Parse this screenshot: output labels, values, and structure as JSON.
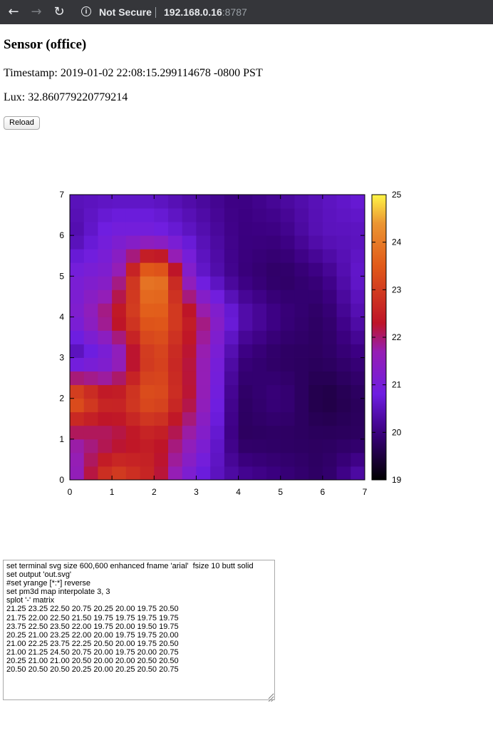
{
  "browser": {
    "security_label": "Not Secure",
    "host": "192.168.0.16",
    "port": ":8787"
  },
  "page": {
    "title": "Sensor (office)",
    "timestamp_line": "Timestamp: 2019-01-02 22:08:15.299114678 -0800 PST",
    "lux_line": "Lux: 32.860779220779214",
    "reload_label": "Reload"
  },
  "chart_data": {
    "type": "heatmap",
    "interpolate": [
      3,
      3
    ],
    "x_ticks": [
      "0",
      "1",
      "2",
      "3",
      "4",
      "5",
      "6",
      "7"
    ],
    "y_ticks": [
      "0",
      "1",
      "2",
      "3",
      "4",
      "5",
      "6",
      "7"
    ],
    "xlim": [
      0,
      7
    ],
    "ylim": [
      0,
      7
    ],
    "colorbar": {
      "ticks": [
        "19",
        "20",
        "21",
        "22",
        "23",
        "24",
        "25"
      ],
      "range": [
        19,
        25
      ]
    },
    "matrix": [
      [
        21.25,
        23.25,
        22.5,
        20.75,
        20.25,
        20.0,
        19.75,
        20.5
      ],
      [
        21.75,
        22.0,
        22.5,
        21.5,
        19.75,
        19.75,
        19.75,
        19.75
      ],
      [
        23.75,
        22.5,
        23.5,
        22.0,
        19.75,
        20.0,
        19.5,
        19.75
      ],
      [
        20.25,
        21.0,
        23.25,
        22.0,
        20.0,
        19.75,
        19.75,
        20.0
      ],
      [
        21.0,
        22.25,
        23.75,
        22.25,
        20.5,
        20.0,
        19.75,
        20.5
      ],
      [
        21.0,
        21.25,
        24.5,
        20.75,
        20.0,
        19.75,
        20.0,
        20.75
      ],
      [
        20.25,
        21.0,
        21.0,
        20.5,
        20.0,
        20.0,
        20.5,
        20.5
      ],
      [
        20.5,
        20.5,
        20.5,
        20.25,
        20.0,
        20.25,
        20.5,
        20.75
      ]
    ]
  },
  "script_text": "set terminal svg size 600,600 enhanced fname 'arial'  fsize 10 butt solid\nset output 'out.svg'\n#set yrange [*:*] reverse\nset pm3d map interpolate 3, 3\nsplot '-' matrix\n21.25 23.25 22.50 20.75 20.25 20.00 19.75 20.50\n21.75 22.00 22.50 21.50 19.75 19.75 19.75 19.75\n23.75 22.50 23.50 22.00 19.75 20.00 19.50 19.75\n20.25 21.00 23.25 22.00 20.00 19.75 19.75 20.00\n21.00 22.25 23.75 22.25 20.50 20.00 19.75 20.50\n21.00 21.25 24.50 20.75 20.00 19.75 20.00 20.75\n20.25 21.00 21.00 20.50 20.00 20.00 20.50 20.50\n20.50 20.50 20.50 20.25 20.00 20.25 20.50 20.75"
}
